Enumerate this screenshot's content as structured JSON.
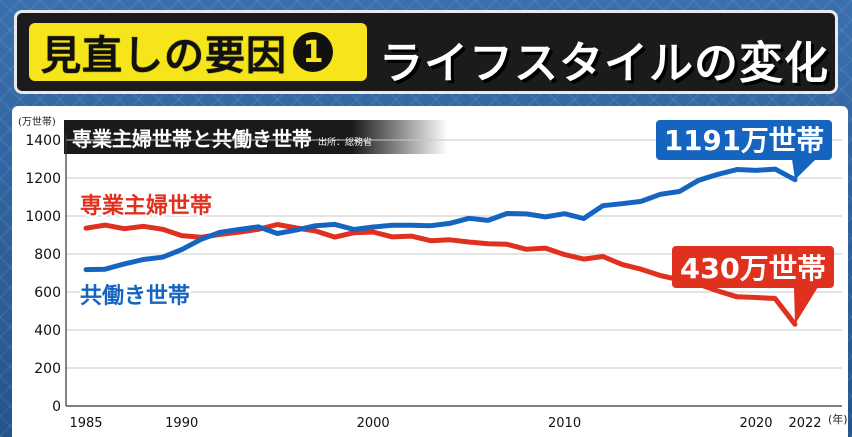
{
  "banner": {
    "tag": "見直しの要因",
    "number": "1",
    "title": "ライフスタイルの変化"
  },
  "legend_box": {
    "title": "専業主婦世帯と共働き世帯",
    "source": "出所：総務省"
  },
  "colors": {
    "housewife": "#e0301e",
    "dualincome": "#1565c0",
    "banner_yellow": "#f5e51a",
    "background": "#2b5f9a"
  },
  "chart_data": {
    "type": "line",
    "title": "専業主婦世帯と共働き世帯",
    "unit_label": "(万世帯)",
    "x_suffix": "(年)",
    "xlim": [
      1985,
      2022
    ],
    "ylim": [
      0,
      1400
    ],
    "x_ticks": [
      "1985",
      "1990",
      "2000",
      "2010",
      "2020",
      "2022"
    ],
    "y_ticks": [
      "0",
      "200",
      "400",
      "600",
      "800",
      "1000",
      "1200",
      "1400"
    ],
    "grid": true,
    "series": [
      {
        "name": "専業主婦世帯",
        "color": "#e0301e",
        "end_label": "430万世帯",
        "x": [
          1985,
          1986,
          1987,
          1988,
          1989,
          1990,
          1991,
          1992,
          1993,
          1994,
          1995,
          1996,
          1997,
          1998,
          1999,
          2000,
          2001,
          2002,
          2003,
          2004,
          2005,
          2006,
          2007,
          2008,
          2009,
          2010,
          2011,
          2012,
          2013,
          2014,
          2015,
          2016,
          2017,
          2018,
          2019,
          2020,
          2021,
          2022
        ],
        "values": [
          936,
          952,
          933,
          946,
          930,
          897,
          888,
          903,
          915,
          930,
          955,
          937,
          921,
          889,
          912,
          916,
          890,
          894,
          870,
          875,
          863,
          854,
          851,
          825,
          831,
          797,
          773,
          787,
          745,
          720,
          687,
          664,
          641,
          606,
          575,
          571,
          566,
          430
        ]
      },
      {
        "name": "共働き世帯",
        "color": "#1565c0",
        "end_label": "1191万世帯",
        "x": [
          1985,
          1986,
          1987,
          1988,
          1989,
          1990,
          1991,
          1992,
          1993,
          1994,
          1995,
          1996,
          1997,
          1998,
          1999,
          2000,
          2001,
          2002,
          2003,
          2004,
          2005,
          2006,
          2007,
          2008,
          2009,
          2010,
          2011,
          2012,
          2013,
          2014,
          2015,
          2016,
          2017,
          2018,
          2019,
          2020,
          2021,
          2022
        ],
        "values": [
          718,
          720,
          748,
          771,
          783,
          823,
          877,
          914,
          929,
          943,
          908,
          927,
          949,
          956,
          929,
          942,
          951,
          951,
          949,
          961,
          988,
          977,
          1013,
          1011,
          995,
          1012,
          987,
          1054,
          1065,
          1077,
          1114,
          1129,
          1188,
          1219,
          1245,
          1240,
          1247,
          1191
        ]
      }
    ]
  }
}
